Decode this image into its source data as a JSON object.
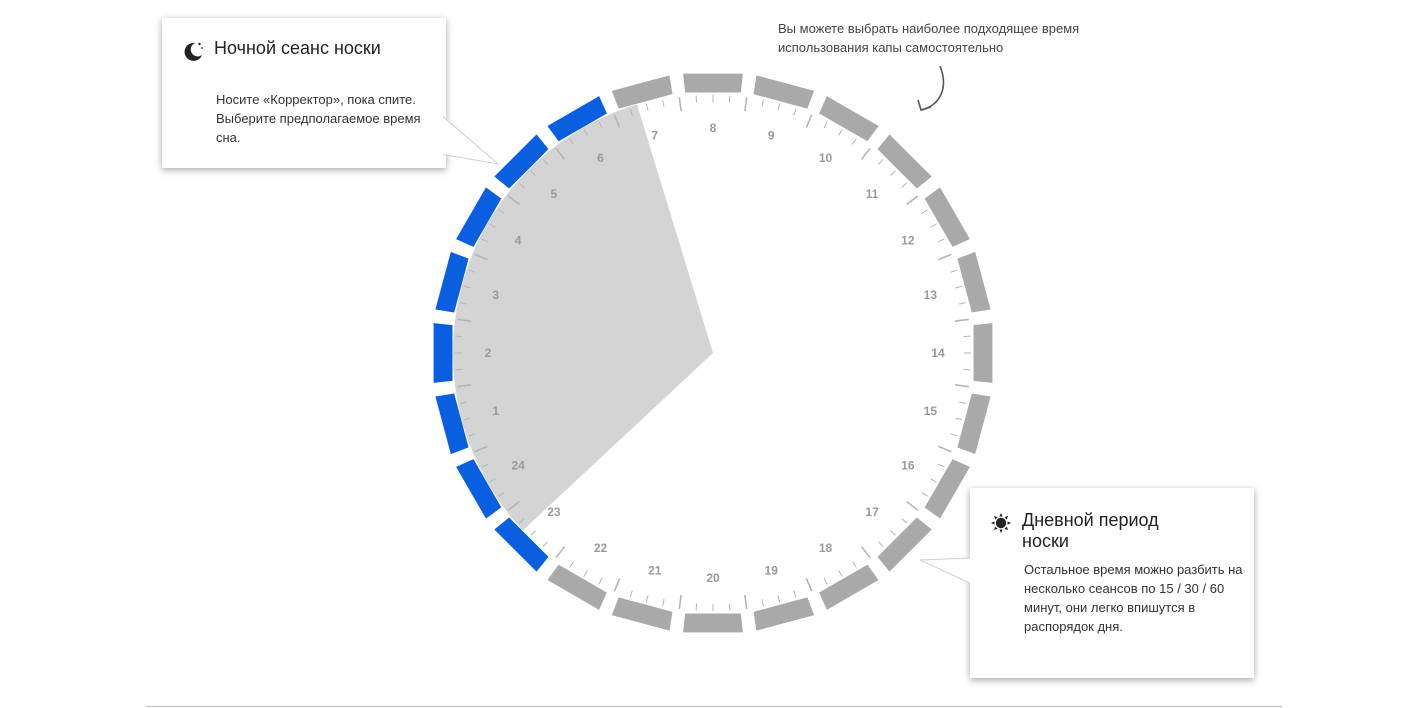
{
  "night_callout": {
    "title": "Ночной сеанс носки",
    "text": "Носите «Корректор», пока спите. Выберите предполагаемое время сна.",
    "icon": "moon-icon"
  },
  "day_callout": {
    "title": "Дневной период носки",
    "text": "Остальное время можно разбить на несколько сеансов по 15 / 30 / 60 минут, они легко впишутся в распорядок дня.",
    "icon": "sun-icon"
  },
  "hint": {
    "text": "Вы можете выбрать наиболее подходящее время использования капы самостоятельно"
  },
  "dial": {
    "hours": [
      "1",
      "2",
      "3",
      "4",
      "5",
      "6",
      "7",
      "8",
      "9",
      "10",
      "11",
      "12",
      "13",
      "14",
      "15",
      "16",
      "17",
      "18",
      "19",
      "20",
      "21",
      "22",
      "23",
      "24"
    ],
    "night_start_hour": 23,
    "night_end_hour": 7,
    "colors": {
      "night_segment": "#0a5fe0",
      "day_segment": "#a9a9a9",
      "sector_fill": "#d4d4d4",
      "tick": "#b5b5b5",
      "hour_label": "#9a9a9a"
    }
  }
}
